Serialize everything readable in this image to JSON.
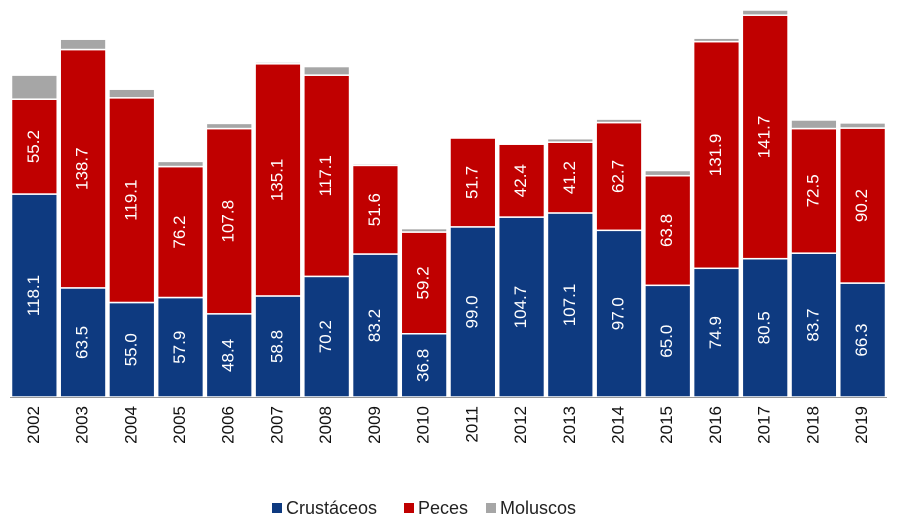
{
  "chart_data": {
    "type": "stacked_bar",
    "categories": [
      "2002",
      "2003",
      "2004",
      "2005",
      "2006",
      "2007",
      "2008",
      "2009",
      "2010",
      "2011",
      "2012",
      "2013",
      "2014",
      "2015",
      "2016",
      "2017",
      "2018",
      "2019"
    ],
    "series": [
      {
        "name": "Crustáceos",
        "color": "#0e3a80",
        "values": [
          118.1,
          63.5,
          55.0,
          57.9,
          48.4,
          58.8,
          70.2,
          83.2,
          36.8,
          99.0,
          104.7,
          107.1,
          97.0,
          65.0,
          74.9,
          80.5,
          83.7,
          66.3
        ],
        "value_labels": [
          "118.1",
          "63.5",
          "55.0",
          "57.9",
          "48.4",
          "58.8",
          "70.2",
          "83.2",
          "36.8",
          "99.0",
          "104.7",
          "107.1",
          "97.0",
          "65.0",
          "74.9",
          "80.5",
          "83.7",
          "66.3"
        ]
      },
      {
        "name": "Peces",
        "color": "#c00000",
        "values": [
          55.2,
          138.7,
          119.1,
          76.2,
          107.8,
          135.1,
          117.1,
          51.6,
          59.2,
          51.7,
          42.4,
          41.2,
          62.7,
          63.8,
          131.9,
          141.7,
          72.5,
          90.2
        ],
        "value_labels": [
          "55.2",
          "138.7",
          "119.1",
          "76.2",
          "107.8",
          "135.1",
          "117.1",
          "51.6",
          "59.2",
          "51.7",
          "42.4",
          "41.2",
          "62.7",
          "63.8",
          "131.9",
          "141.7",
          "72.5",
          "90.2"
        ]
      },
      {
        "name": "Moluscos",
        "color": "#a6a6a6",
        "values": [
          14,
          6,
          5,
          3,
          3,
          1,
          5,
          1,
          2,
          0,
          0,
          2,
          2,
          3,
          2,
          3,
          5,
          3
        ]
      }
    ],
    "legend": "bottom"
  }
}
